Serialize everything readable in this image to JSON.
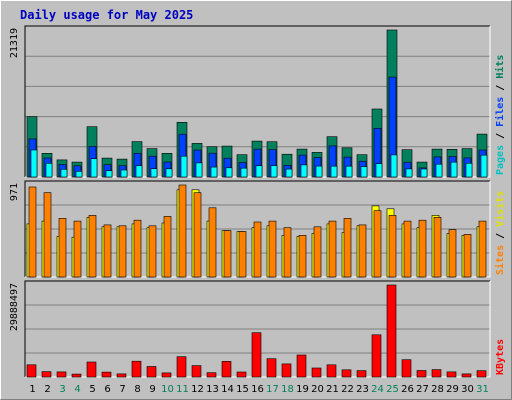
{
  "chart_data": [
    {
      "type": "bar",
      "title": "Daily usage for May 2025",
      "ymax_label": "21319",
      "categories": [
        "1",
        "2",
        "3",
        "4",
        "5",
        "6",
        "7",
        "8",
        "9",
        "10",
        "11",
        "12",
        "13",
        "14",
        "15",
        "16",
        "17",
        "18",
        "19",
        "20",
        "21",
        "22",
        "23",
        "24",
        "25",
        "26",
        "27",
        "28",
        "29",
        "30",
        "31"
      ],
      "weekend_days": [
        "3",
        "4",
        "10",
        "11",
        "17",
        "18",
        "24",
        "25",
        "31"
      ],
      "series": [
        {
          "name": "Hits",
          "color": "#00805c",
          "values": [
            8760,
            3430,
            2480,
            2160,
            7300,
            2740,
            2600,
            5130,
            4120,
            3430,
            7940,
            4870,
            4390,
            4480,
            3240,
            5210,
            5120,
            3310,
            4050,
            3570,
            5840,
            4240,
            3240,
            9860,
            21319,
            3960,
            2160,
            4040,
            4020,
            4120,
            6220
          ]
        },
        {
          "name": "Files",
          "color": "#0040ff",
          "values": [
            5530,
            2760,
            1820,
            1620,
            4420,
            1780,
            1660,
            3440,
            3020,
            2170,
            6210,
            3920,
            3450,
            2720,
            2110,
            4040,
            3980,
            1700,
            3170,
            2810,
            4510,
            2880,
            2290,
            7060,
            14490,
            2140,
            1320,
            2920,
            2970,
            2770,
            3920
          ]
        },
        {
          "name": "Pages",
          "color": "#00ffff",
          "values": [
            3910,
            1980,
            1120,
            810,
            2650,
            920,
            1010,
            1650,
            1200,
            1190,
            3020,
            2040,
            1440,
            1340,
            1280,
            1640,
            1650,
            1150,
            1750,
            1580,
            1570,
            1570,
            1510,
            1950,
            3210,
            1180,
            1160,
            1860,
            2150,
            1980,
            3160
          ]
        }
      ]
    },
    {
      "type": "bar",
      "ymax_label": "971",
      "categories": [
        "1",
        "2",
        "3",
        "4",
        "5",
        "6",
        "7",
        "8",
        "9",
        "10",
        "11",
        "12",
        "13",
        "14",
        "15",
        "16",
        "17",
        "18",
        "19",
        "20",
        "21",
        "22",
        "23",
        "24",
        "25",
        "26",
        "27",
        "28",
        "29",
        "30",
        "31"
      ],
      "series": [
        {
          "name": "Visits",
          "color": "#ffff00",
          "values": [
            560,
            590,
            430,
            420,
            630,
            530,
            530,
            560,
            520,
            570,
            920,
            920,
            590,
            490,
            480,
            520,
            540,
            440,
            430,
            460,
            560,
            470,
            540,
            750,
            720,
            560,
            520,
            650,
            460,
            440,
            530
          ]
        },
        {
          "name": "Sites",
          "color": "#ff8000",
          "values": [
            950,
            890,
            620,
            590,
            650,
            550,
            540,
            600,
            540,
            640,
            971,
            890,
            730,
            490,
            480,
            580,
            590,
            520,
            440,
            530,
            590,
            620,
            550,
            700,
            650,
            590,
            600,
            630,
            500,
            450,
            590
          ]
        }
      ]
    },
    {
      "type": "bar",
      "ymax_label": "29888497",
      "categories": [
        "1",
        "2",
        "3",
        "4",
        "5",
        "6",
        "7",
        "8",
        "9",
        "10",
        "11",
        "12",
        "13",
        "14",
        "15",
        "16",
        "17",
        "18",
        "19",
        "20",
        "21",
        "22",
        "23",
        "24",
        "25",
        "26",
        "27",
        "28",
        "29",
        "30",
        "31"
      ],
      "series": [
        {
          "name": "KBytes",
          "color": "#ff0000",
          "values": [
            3950000,
            1750000,
            1670000,
            930000,
            4860000,
            1590000,
            1000000,
            5130000,
            3400000,
            1340000,
            6610000,
            3710000,
            1410000,
            5080000,
            1610000,
            14380000,
            5950000,
            4240000,
            7140000,
            2930000,
            3970000,
            2330000,
            2090000,
            13720000,
            29888497,
            5630000,
            2100000,
            2400000,
            1670000,
            1020000,
            2060000
          ]
        }
      ]
    }
  ]
}
